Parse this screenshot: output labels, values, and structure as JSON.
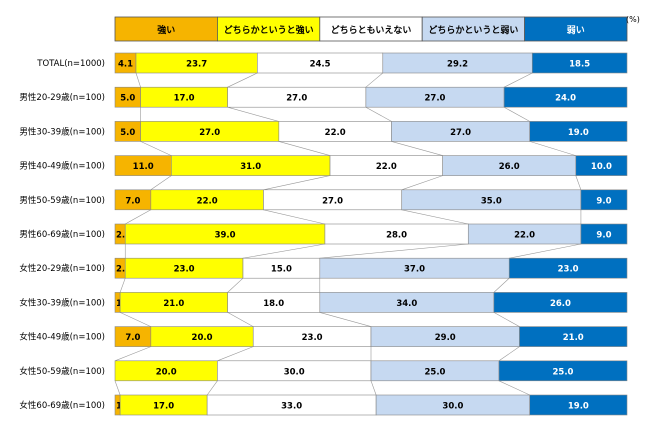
{
  "colors": {
    "strong": "#F6B400",
    "somewhat_strong": "#FFFF00",
    "neutral": "#FFFFFF",
    "somewhat_weak": "#C6D9F1",
    "weak": "#0070C0",
    "border": "#888888",
    "connector": "#999999"
  },
  "chart_data": {
    "type": "bar",
    "orientation": "horizontal",
    "stacked": true,
    "percent_stacked": true,
    "unit": "(%)",
    "xlim": [
      0,
      100
    ],
    "grid": false,
    "legend_position": "top",
    "categories": [
      "TOTAL(n=1000)",
      "男性20-29歳(n=100)",
      "男性30-39歳(n=100)",
      "男性40-49歳(n=100)",
      "男性50-59歳(n=100)",
      "男性60-69歳(n=100)",
      "女性20-29歳(n=100)",
      "女性30-39歳(n=100)",
      "女性40-49歳(n=100)",
      "女性50-59歳(n=100)",
      "女性60-69歳(n=100)"
    ],
    "series": [
      {
        "name": "強い",
        "color_key": "strong",
        "values": [
          4.1,
          5.0,
          5.0,
          11.0,
          7.0,
          2.0,
          2.0,
          1.0,
          7.0,
          0,
          1.0
        ]
      },
      {
        "name": "どちらかというと強い",
        "color_key": "somewhat_strong",
        "values": [
          23.7,
          17.0,
          27.0,
          31.0,
          22.0,
          39.0,
          23.0,
          21.0,
          20.0,
          20.0,
          17.0
        ]
      },
      {
        "name": "どちらともいえない",
        "color_key": "neutral",
        "values": [
          24.5,
          27.0,
          22.0,
          22.0,
          27.0,
          28.0,
          15.0,
          18.0,
          23.0,
          30.0,
          33.0
        ]
      },
      {
        "name": "どちらかというと弱い",
        "color_key": "somewhat_weak",
        "values": [
          29.2,
          27.0,
          27.0,
          26.0,
          35.0,
          22.0,
          37.0,
          34.0,
          29.0,
          25.0,
          30.0
        ]
      },
      {
        "name": "弱い",
        "color_key": "weak",
        "values": [
          18.5,
          24.0,
          19.0,
          10.0,
          9.0,
          9.0,
          23.0,
          26.0,
          21.0,
          25.0,
          19.0
        ]
      }
    ]
  }
}
